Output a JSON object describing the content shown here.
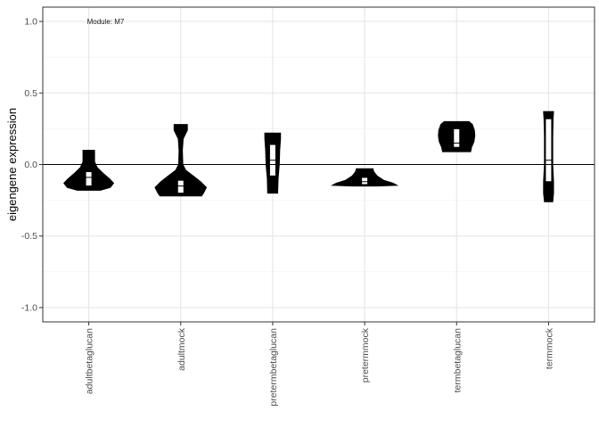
{
  "chart_data": {
    "type": "violin",
    "title": "",
    "xlabel": "",
    "ylabel": "eigengene expression",
    "annotation": "Module: M7",
    "ylim": [
      -1.1,
      1.1
    ],
    "yticks": [
      -1.0,
      -0.5,
      0.0,
      0.5,
      1.0
    ],
    "ytick_labels": [
      "-1.0",
      "-0.5",
      "0.0",
      "0.5",
      "1.0"
    ],
    "reference_line_y": 0.0,
    "grid": true,
    "fill_color": "#000000",
    "box_color": "#ffffff",
    "categories": [
      "adultbetaglucan",
      "adultmock",
      "pretermbetaglucan",
      "pretermmock",
      "termbetaglucan",
      "termmock"
    ],
    "groups": [
      {
        "name": "adultbetaglucan",
        "min": -0.18,
        "max": 0.1,
        "q1": -0.15,
        "median": -0.09,
        "q3": -0.05,
        "violin": [
          [
            -0.18,
            0.28
          ],
          [
            -0.16,
            0.52
          ],
          [
            -0.13,
            0.6
          ],
          [
            -0.1,
            0.5
          ],
          [
            -0.06,
            0.34
          ],
          [
            -0.02,
            0.2
          ],
          [
            0.02,
            0.14
          ],
          [
            0.06,
            0.14
          ],
          [
            0.1,
            0.14
          ]
        ]
      },
      {
        "name": "adultmock",
        "min": -0.22,
        "max": 0.28,
        "q1": -0.2,
        "median": -0.15,
        "q3": -0.11,
        "violin": [
          [
            -0.22,
            0.5
          ],
          [
            -0.2,
            0.55
          ],
          [
            -0.16,
            0.62
          ],
          [
            -0.12,
            0.48
          ],
          [
            -0.08,
            0.3
          ],
          [
            -0.04,
            0.12
          ],
          [
            0.0,
            0.05
          ],
          [
            0.1,
            0.04
          ],
          [
            0.18,
            0.06
          ],
          [
            0.24,
            0.16
          ],
          [
            0.28,
            0.16
          ]
        ]
      },
      {
        "name": "pretermbetaglucan",
        "min": -0.2,
        "max": 0.22,
        "q1": -0.08,
        "median": 0.03,
        "q3": 0.14,
        "violin": [
          [
            -0.2,
            0.12
          ],
          [
            -0.1,
            0.13
          ],
          [
            0.0,
            0.16
          ],
          [
            0.1,
            0.17
          ],
          [
            0.18,
            0.19
          ],
          [
            0.22,
            0.19
          ]
        ]
      },
      {
        "name": "pretermmock",
        "min": -0.15,
        "max": -0.03,
        "q1": -0.14,
        "median": -0.12,
        "q3": -0.09,
        "violin": [
          [
            -0.15,
            0.3
          ],
          [
            -0.145,
            0.78
          ],
          [
            -0.13,
            0.68
          ],
          [
            -0.11,
            0.46
          ],
          [
            -0.08,
            0.3
          ],
          [
            -0.05,
            0.22
          ],
          [
            -0.03,
            0.2
          ]
        ]
      },
      {
        "name": "termbetaglucan",
        "min": 0.09,
        "max": 0.3,
        "q1": 0.12,
        "median": 0.15,
        "q3": 0.25,
        "violin": [
          [
            0.09,
            0.34
          ],
          [
            0.12,
            0.36
          ],
          [
            0.16,
            0.42
          ],
          [
            0.2,
            0.44
          ],
          [
            0.24,
            0.43
          ],
          [
            0.28,
            0.38
          ],
          [
            0.3,
            0.3
          ]
        ]
      },
      {
        "name": "termmock",
        "min": -0.26,
        "max": 0.37,
        "q1": -0.12,
        "median": 0.03,
        "q3": 0.32,
        "violin": [
          [
            -0.26,
            0.1
          ],
          [
            -0.2,
            0.12
          ],
          [
            -0.12,
            0.12
          ],
          [
            0.0,
            0.1
          ],
          [
            0.2,
            0.1
          ],
          [
            0.32,
            0.11
          ],
          [
            0.37,
            0.12
          ]
        ]
      }
    ]
  }
}
